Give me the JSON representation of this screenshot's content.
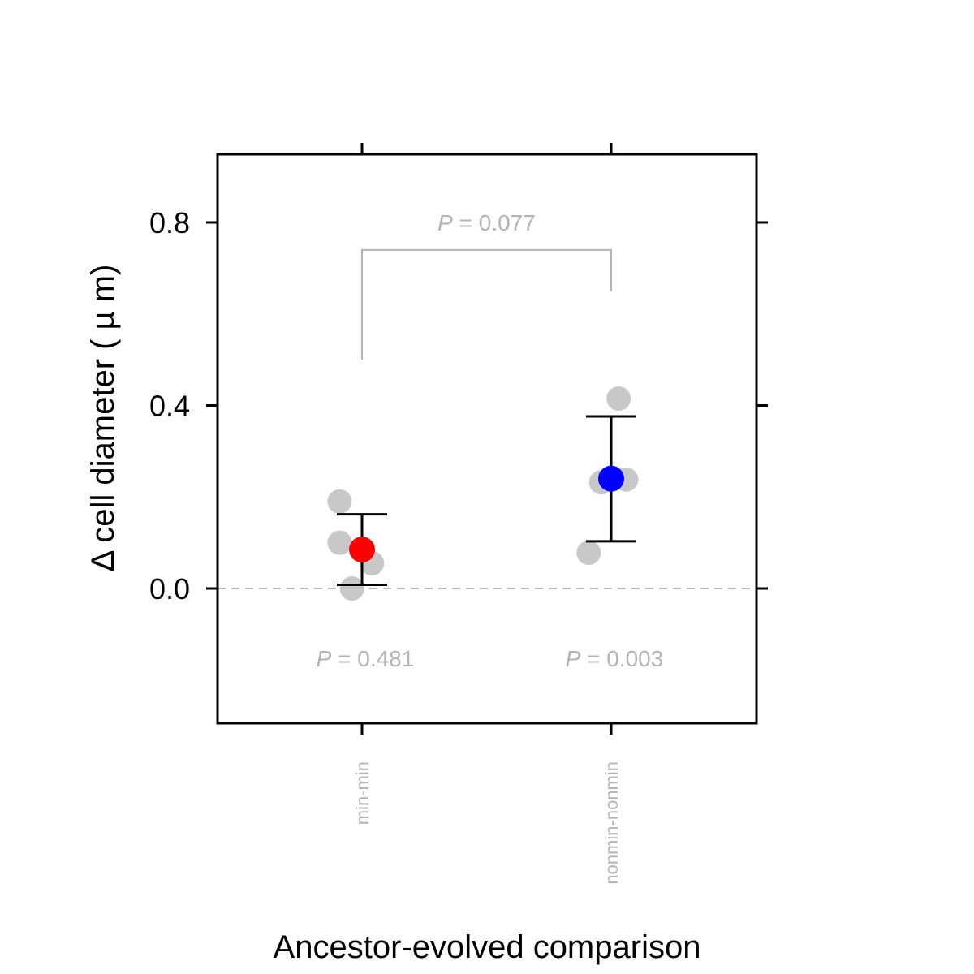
{
  "chart_data": {
    "type": "scatter",
    "xlabel": "Ancestor-evolved comparison",
    "ylabel": "Δ cell diameter ( µ m)",
    "categories": [
      "min-min",
      "nonmin-nonmin"
    ],
    "ylim": [
      -0.29,
      0.95
    ],
    "yticks": [
      "0.0",
      "0.4",
      "0.8"
    ],
    "ytick_values": [
      0.0,
      0.4,
      0.8
    ],
    "grid": false,
    "reference_line": 0.0,
    "groups": [
      {
        "category": "min-min",
        "mean": 0.085,
        "ci_low": 0.008,
        "ci_high": 0.162,
        "points": [
          [
            -0.09,
            0.19
          ],
          [
            -0.09,
            0.1
          ],
          [
            0.04,
            0.055
          ],
          [
            -0.04,
            0.0
          ]
        ],
        "color": "#ff0000",
        "p_text": "P = 0.481"
      },
      {
        "category": "nonmin-nonmin",
        "mean": 0.24,
        "ci_low": 0.103,
        "ci_high": 0.376,
        "points": [
          [
            0.03,
            0.415
          ],
          [
            -0.04,
            0.232
          ],
          [
            0.06,
            0.238
          ],
          [
            -0.09,
            0.078
          ]
        ],
        "color": "#0000ff",
        "p_text": "P = 0.003"
      }
    ],
    "comparison": {
      "between": [
        "min-min",
        "nonmin-nonmin"
      ],
      "left_y": 0.5,
      "right_y": 0.65,
      "top_y": 0.74,
      "p_text": "P = 0.077"
    },
    "point_color": "#c8c8c8",
    "annotation_color": "#b4b4b4"
  }
}
